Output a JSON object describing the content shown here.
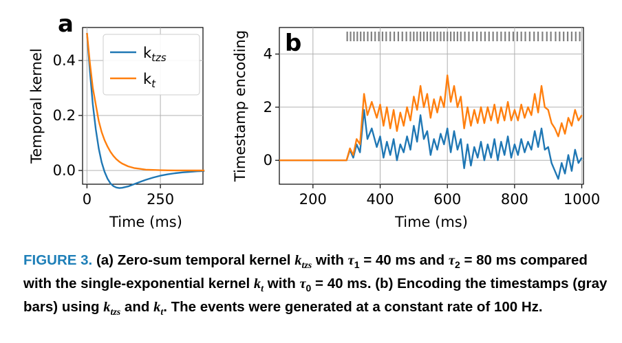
{
  "chart_data": [
    {
      "panel": "a",
      "type": "line",
      "xlabel": "Time (ms)",
      "ylabel": "Temporal kernel",
      "xlim": [
        -15,
        395
      ],
      "ylim": [
        -0.05,
        0.52
      ],
      "xticks": [
        0,
        250
      ],
      "xtick_labels": [
        "0",
        "250"
      ],
      "yticks": [
        0.0,
        0.2,
        0.4
      ],
      "ytick_labels": [
        "0.0",
        "0.2",
        "0.4"
      ],
      "grid": true,
      "legend_position": "upper-right",
      "series": [
        {
          "name": "k_tzs",
          "legend_main": "k",
          "legend_sub": "tzs",
          "color": "#1f77b4",
          "x": [
            0,
            10,
            20,
            30,
            40,
            50,
            60,
            70,
            80,
            90,
            100,
            110,
            120,
            140,
            160,
            180,
            200,
            225,
            250,
            275,
            300,
            325,
            350,
            375,
            400
          ],
          "y": [
            0.5,
            0.36,
            0.24,
            0.15,
            0.08,
            0.03,
            -0.005,
            -0.03,
            -0.047,
            -0.057,
            -0.062,
            -0.064,
            -0.063,
            -0.058,
            -0.05,
            -0.042,
            -0.034,
            -0.026,
            -0.019,
            -0.014,
            -0.01,
            -0.007,
            -0.005,
            -0.003,
            -0.002
          ]
        },
        {
          "name": "k_t",
          "legend_main": "k",
          "legend_sub": "t",
          "color": "#ff7f0e",
          "x": [
            0,
            10,
            20,
            30,
            40,
            50,
            60,
            70,
            80,
            90,
            100,
            110,
            120,
            140,
            160,
            180,
            200,
            225,
            250,
            275,
            300,
            325,
            350,
            375,
            400
          ],
          "y": [
            0.5,
            0.39,
            0.3,
            0.24,
            0.18,
            0.14,
            0.11,
            0.087,
            0.068,
            0.053,
            0.041,
            0.032,
            0.025,
            0.015,
            0.009,
            0.006,
            0.003,
            0.002,
            0.001,
            0.0005,
            0.0003,
            0.0002,
            0.0001,
            0.0,
            0.0
          ]
        }
      ]
    },
    {
      "panel": "b",
      "type": "line",
      "xlabel": "Time (ms)",
      "ylabel": "Timestamp encoding",
      "xlim": [
        100,
        1005
      ],
      "ylim": [
        -0.9,
        5.0
      ],
      "xticks": [
        200,
        400,
        600,
        800,
        1000
      ],
      "xtick_labels": [
        "200",
        "400",
        "600",
        "800",
        "1000"
      ],
      "yticks": [
        0,
        2,
        4
      ],
      "ytick_labels": [
        "0",
        "2",
        "4"
      ],
      "grid": true,
      "event_color": "#808080",
      "events": [
        302,
        312,
        322,
        332,
        342,
        352,
        363,
        374,
        385,
        396,
        407,
        418,
        430,
        442,
        454,
        466,
        478,
        490,
        500,
        510,
        520,
        530,
        540,
        550,
        560,
        570,
        580,
        590,
        600,
        610,
        620,
        630,
        640,
        652,
        664,
        676,
        688,
        700,
        712,
        724,
        736,
        748,
        760,
        772,
        784,
        796,
        808,
        820,
        832,
        845,
        858,
        870,
        883,
        896,
        908,
        922,
        934,
        946,
        958,
        970,
        982,
        994
      ],
      "series": [
        {
          "name": "k_tzs",
          "color": "#1f77b4",
          "x": [
            100,
            300,
            310,
            320,
            330,
            340,
            352,
            362,
            375,
            390,
            400,
            410,
            420,
            430,
            440,
            450,
            460,
            470,
            480,
            490,
            500,
            510,
            520,
            530,
            540,
            550,
            560,
            570,
            580,
            590,
            600,
            610,
            620,
            630,
            640,
            650,
            660,
            670,
            680,
            690,
            700,
            710,
            720,
            730,
            740,
            750,
            760,
            770,
            780,
            790,
            800,
            810,
            820,
            830,
            840,
            850,
            860,
            870,
            880,
            890,
            900,
            910,
            920,
            930,
            940,
            950,
            960,
            970,
            980,
            990,
            1000
          ],
          "y": [
            0,
            0,
            0.4,
            0.1,
            0.6,
            0.3,
            1.9,
            0.8,
            1.2,
            0.5,
            0.9,
            0.1,
            0.7,
            0.2,
            0.8,
            0.0,
            0.6,
            0.3,
            0.9,
            0.4,
            1.3,
            0.7,
            1.7,
            0.8,
            1.1,
            0.2,
            0.8,
            0.4,
            1.0,
            0.6,
            1.2,
            0.3,
            1.1,
            0.4,
            0.8,
            -0.3,
            0.6,
            -0.2,
            0.5,
            0.1,
            0.7,
            0.0,
            0.6,
            0.1,
            0.8,
            0.0,
            0.7,
            0.2,
            0.9,
            0.1,
            0.6,
            0.2,
            0.8,
            0.3,
            0.7,
            0.4,
            1.1,
            0.5,
            1.2,
            0.4,
            0.5,
            -0.1,
            -0.4,
            -0.7,
            -0.1,
            -0.5,
            0.2,
            -0.4,
            0.4,
            -0.1,
            0.1
          ]
        },
        {
          "name": "k_t",
          "color": "#ff7f0e",
          "x": [
            100,
            300,
            310,
            320,
            330,
            340,
            352,
            362,
            375,
            390,
            400,
            410,
            420,
            430,
            440,
            450,
            460,
            470,
            480,
            490,
            500,
            510,
            520,
            530,
            540,
            550,
            560,
            570,
            580,
            590,
            600,
            610,
            620,
            630,
            640,
            650,
            660,
            670,
            680,
            690,
            700,
            710,
            720,
            730,
            740,
            750,
            760,
            770,
            780,
            790,
            800,
            810,
            820,
            830,
            840,
            850,
            860,
            870,
            880,
            890,
            900,
            910,
            920,
            930,
            940,
            950,
            960,
            970,
            980,
            990,
            1000
          ],
          "y": [
            0,
            0,
            0.45,
            0.2,
            0.8,
            0.6,
            2.5,
            1.7,
            2.2,
            1.6,
            2.1,
            1.3,
            2.0,
            1.2,
            1.9,
            1.1,
            1.8,
            1.3,
            2.0,
            1.5,
            2.4,
            1.9,
            2.8,
            2.0,
            2.5,
            1.6,
            2.3,
            1.8,
            2.4,
            2.0,
            3.2,
            2.2,
            2.8,
            2.0,
            2.4,
            1.2,
            2.0,
            1.3,
            1.9,
            1.4,
            2.0,
            1.4,
            2.0,
            1.5,
            2.1,
            1.4,
            2.0,
            1.5,
            2.2,
            1.5,
            1.9,
            1.5,
            2.1,
            1.6,
            2.0,
            1.7,
            2.5,
            1.8,
            2.8,
            2.0,
            1.9,
            1.4,
            1.2,
            0.9,
            1.4,
            1.0,
            1.6,
            1.3,
            1.9,
            1.5,
            1.7
          ]
        }
      ]
    }
  ],
  "figure": {
    "panel_a_letter": "a",
    "panel_b_letter": "b"
  },
  "caption": {
    "lead": "FIGURE 3.",
    "part_a_label": "(a)",
    "text_a1": " Zero-sum temporal kernel ",
    "k_tzs_main": "k",
    "k_tzs_sub": "tzs",
    "text_a2": " with ",
    "tau1_main": "τ",
    "tau1_sub": "1",
    "text_a3": " = 40 ms and ",
    "tau2_main": "τ",
    "tau2_sub": "2",
    "text_a4": " = 80 ms compared with the single-exponential kernel ",
    "k_t_main": "k",
    "k_t_sub": "t",
    "text_a5": " with ",
    "tau0_main": "τ",
    "tau0_sub": "0",
    "text_a6": " = 40 ms. ",
    "part_b_label": "(b)",
    "text_b1": " Encoding the timestamps (gray bars) using ",
    "k_tzs2_main": "k",
    "k_tzs2_sub": "tzs",
    "text_b2": " and ",
    "k_t2_main": "k",
    "k_t2_sub": "t",
    "text_b3": ". The events were generated at a constant rate of 100 Hz."
  }
}
